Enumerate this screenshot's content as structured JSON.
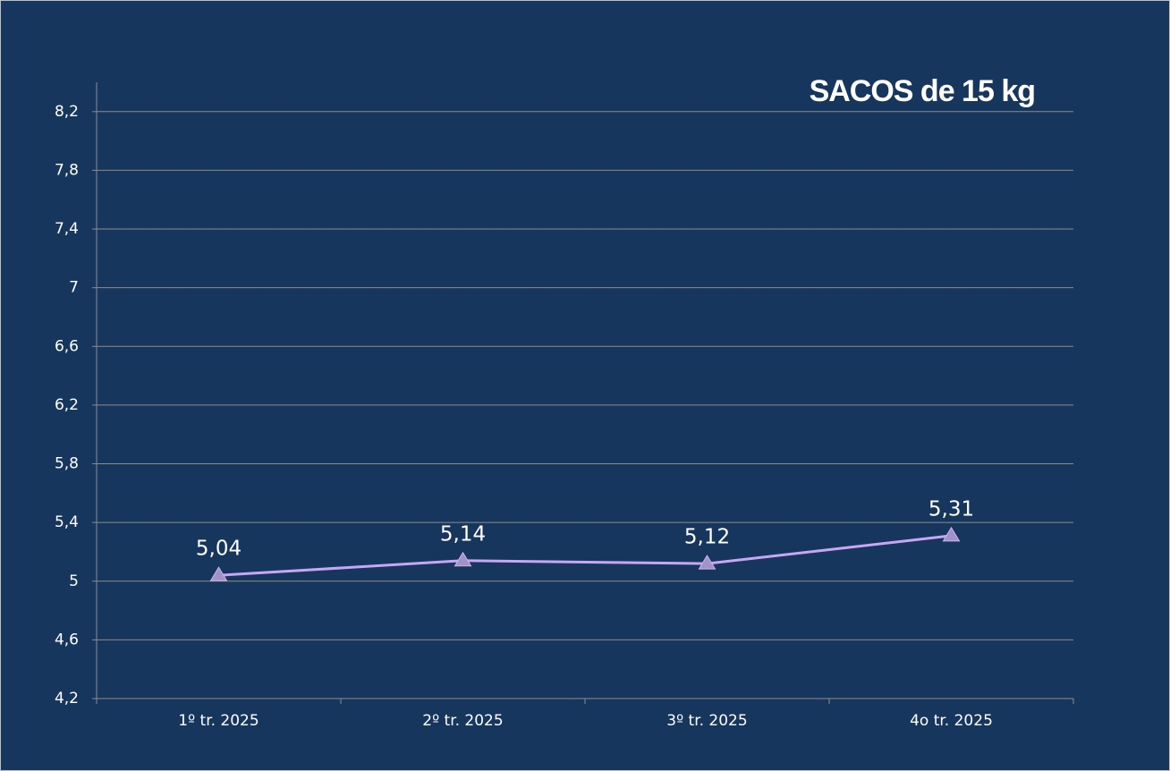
{
  "chart_data": {
    "type": "line",
    "title": "SACOS de 15 kg",
    "categories": [
      "1º tr. 2025",
      "2º tr. 2025",
      "3º tr. 2025",
      "4o tr. 2025"
    ],
    "series": [
      {
        "name": "SACOS de 15 kg",
        "color": "#c7a6f5",
        "marker_color": "#a391c9",
        "values": [
          5.04,
          5.14,
          5.12,
          5.31
        ],
        "value_labels": [
          "5,04",
          "5,14",
          "5,12",
          "5,31"
        ]
      }
    ],
    "ylim": [
      4.2,
      8.4
    ],
    "yticks": [
      {
        "value": 4.2,
        "label": "4,2"
      },
      {
        "value": 4.6,
        "label": "4,6"
      },
      5,
      {
        "value": 5.4,
        "label": "5,4"
      },
      {
        "value": 5.8,
        "label": "5,8"
      },
      {
        "value": 6.2,
        "label": "6,2"
      },
      {
        "value": 6.6,
        "label": "6,6"
      },
      7,
      {
        "value": 7.4,
        "label": "7,4"
      },
      {
        "value": 7.8,
        "label": "7,8"
      },
      {
        "value": 8.2,
        "label": "8,2"
      }
    ],
    "grid": true
  }
}
